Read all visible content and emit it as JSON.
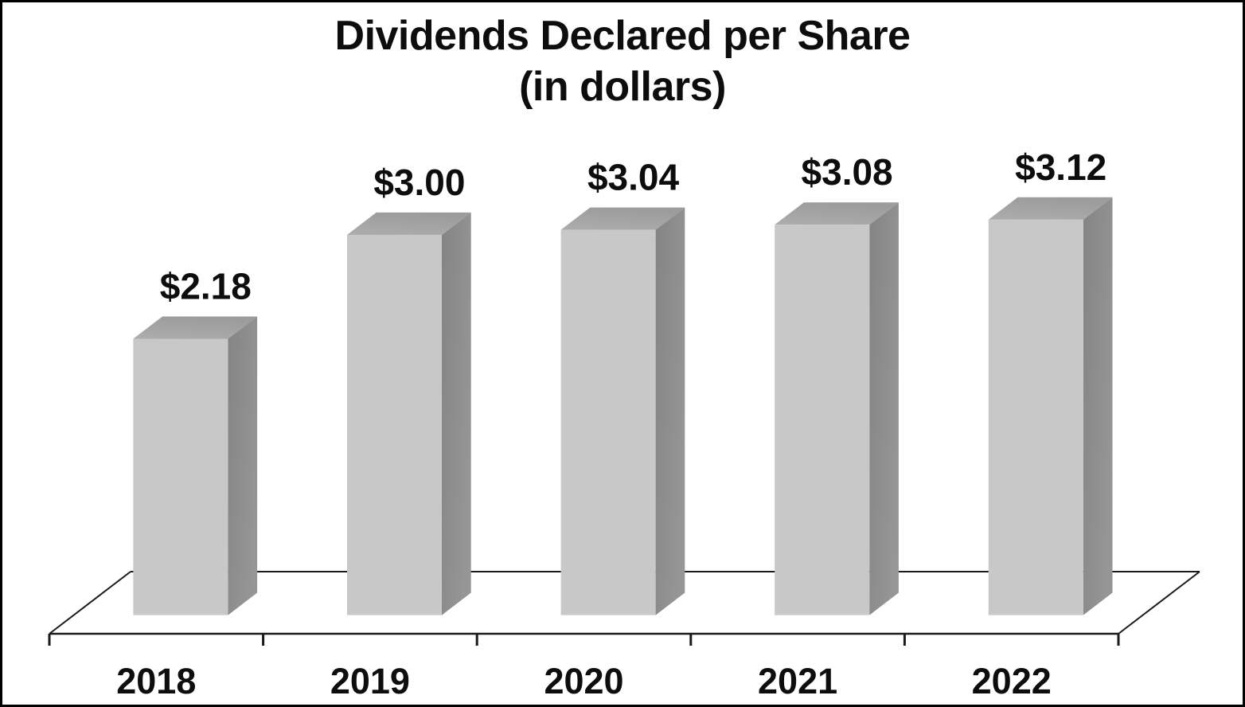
{
  "window": {
    "background_color": "#ffffff",
    "border_color": "#000000"
  },
  "chart_data": {
    "type": "bar",
    "projection": "3d",
    "title": "Dividends Declared per Share",
    "subtitle": "(in dollars)",
    "categories": [
      "2018",
      "2019",
      "2020",
      "2021",
      "2022"
    ],
    "values": [
      2.18,
      3.0,
      3.04,
      3.08,
      3.12
    ],
    "value_labels": [
      "$2.18",
      "$3.00",
      "$3.04",
      "$3.08",
      "$3.12"
    ],
    "series": [
      {
        "name": "Dividends Declared per Share",
        "values": [
          2.18,
          3.0,
          3.04,
          3.08,
          3.12
        ]
      }
    ],
    "xlabel": "",
    "ylabel": "",
    "ylim": [
      0,
      3.5
    ],
    "grid": false,
    "legend": false,
    "y_axis_visible": false,
    "x_axis_visible": true,
    "colors": {
      "bar_front": "#c8c8c8",
      "bar_top_light": "#adadad",
      "bar_top_dark": "#9c9c9c",
      "bar_side_dark": "#848484",
      "bar_side_light": "#969696",
      "axis_line": "#1a1a1a",
      "text": "#0d0d0d",
      "floor": "#ffffff"
    }
  }
}
